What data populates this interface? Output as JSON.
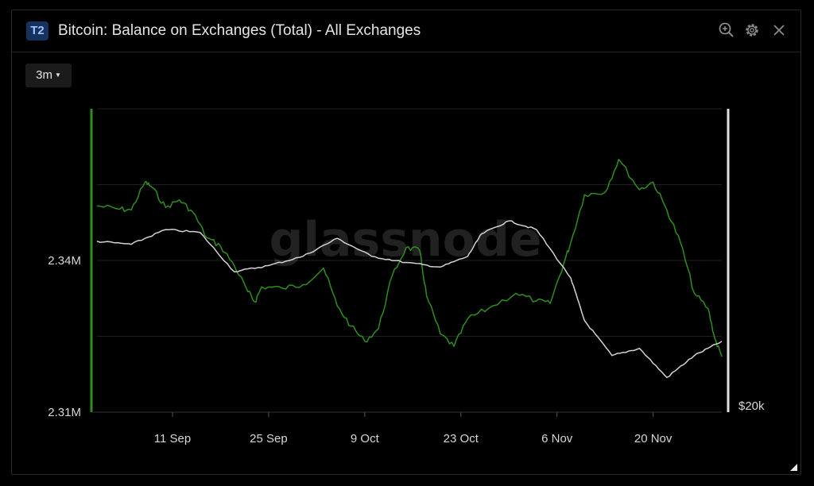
{
  "header": {
    "badge": "T2",
    "title": "Bitcoin: Balance on Exchanges (Total) - All Exchanges",
    "icons": [
      "zoom-in-icon",
      "gear-icon",
      "close-icon"
    ]
  },
  "toolbar": {
    "range_label": "3m"
  },
  "watermark": "glassnode",
  "colors": {
    "balance": "#2f8f1e",
    "price": "#d2d2d2",
    "grid": "#1f1f1f",
    "axis_left": "#2f8f1e",
    "axis_right": "#e0e0e0"
  },
  "chart_data": {
    "type": "line",
    "title": "Bitcoin: Balance on Exchanges (Total) - All Exchanges",
    "x_start": "2022-08-31",
    "x_end": "2022-11-30",
    "x_tick_labels": [
      "11 Sep",
      "25 Sep",
      "9 Oct",
      "23 Oct",
      "6 Nov",
      "20 Nov"
    ],
    "left_axis": {
      "ticks": [
        "2.31M",
        "2.34M"
      ],
      "ylim": [
        2.31,
        2.37
      ],
      "unit": "M BTC"
    },
    "right_axis": {
      "ticks": [
        "$20k"
      ],
      "scale": "log"
    },
    "grid": true,
    "series": [
      {
        "axis": "left",
        "color": "#2f8f1e",
        "points": [
          [
            "2022-08-31",
            2.3508
          ],
          [
            "2022-09-03",
            2.3502
          ],
          [
            "2022-09-05",
            2.35
          ],
          [
            "2022-09-07",
            2.3555
          ],
          [
            "2022-09-08",
            2.3545
          ],
          [
            "2022-09-10",
            2.3505
          ],
          [
            "2022-09-12",
            2.352
          ],
          [
            "2022-09-14",
            2.3495
          ],
          [
            "2022-09-16",
            2.3445
          ],
          [
            "2022-09-18",
            2.3428
          ],
          [
            "2022-09-20",
            2.339
          ],
          [
            "2022-09-22",
            2.3338
          ],
          [
            "2022-09-23",
            2.3318
          ],
          [
            "2022-09-24",
            2.3348
          ],
          [
            "2022-09-27",
            2.3345
          ],
          [
            "2022-09-30",
            2.3352
          ],
          [
            "2022-10-03",
            2.3385
          ],
          [
            "2022-10-05",
            2.331
          ],
          [
            "2022-10-07",
            2.327
          ],
          [
            "2022-10-09",
            2.324
          ],
          [
            "2022-10-11",
            2.3265
          ],
          [
            "2022-10-13",
            2.337
          ],
          [
            "2022-10-15",
            2.3425
          ],
          [
            "2022-10-17",
            2.342
          ],
          [
            "2022-10-18",
            2.333
          ],
          [
            "2022-10-20",
            2.3255
          ],
          [
            "2022-10-22",
            2.323
          ],
          [
            "2022-10-24",
            2.3285
          ],
          [
            "2022-10-27",
            2.3305
          ],
          [
            "2022-10-31",
            2.3335
          ],
          [
            "2022-11-03",
            2.332
          ],
          [
            "2022-11-05",
            2.3315
          ],
          [
            "2022-11-07",
            2.3395
          ],
          [
            "2022-11-08",
            2.3435
          ],
          [
            "2022-11-10",
            2.353
          ],
          [
            "2022-11-13",
            2.3535
          ],
          [
            "2022-11-15",
            2.36
          ],
          [
            "2022-11-18",
            2.354
          ],
          [
            "2022-11-20",
            2.3555
          ],
          [
            "2022-11-22",
            2.35
          ],
          [
            "2022-11-24",
            2.3435
          ],
          [
            "2022-11-26",
            2.3335
          ],
          [
            "2022-11-28",
            2.3305
          ],
          [
            "2022-11-29",
            2.3245
          ],
          [
            "2022-11-30",
            2.321
          ]
        ]
      },
      {
        "axis": "right",
        "color": "#d2d2d2",
        "points": [
          [
            "2022-08-31",
            20000
          ],
          [
            "2022-09-05",
            19900
          ],
          [
            "2022-09-10",
            20400
          ],
          [
            "2022-09-15",
            20300
          ],
          [
            "2022-09-20",
            19000
          ],
          [
            "2022-09-25",
            19200
          ],
          [
            "2022-09-30",
            19500
          ],
          [
            "2022-10-05",
            20100
          ],
          [
            "2022-10-10",
            19500
          ],
          [
            "2022-10-15",
            19300
          ],
          [
            "2022-10-20",
            19150
          ],
          [
            "2022-10-24",
            19500
          ],
          [
            "2022-10-26",
            20250
          ],
          [
            "2022-10-30",
            20700
          ],
          [
            "2022-11-03",
            20400
          ],
          [
            "2022-11-08",
            18800
          ],
          [
            "2022-11-10",
            17500
          ],
          [
            "2022-11-14",
            16500
          ],
          [
            "2022-11-18",
            16700
          ],
          [
            "2022-11-22",
            15900
          ],
          [
            "2022-11-26",
            16500
          ],
          [
            "2022-11-30",
            16900
          ]
        ]
      }
    ]
  }
}
